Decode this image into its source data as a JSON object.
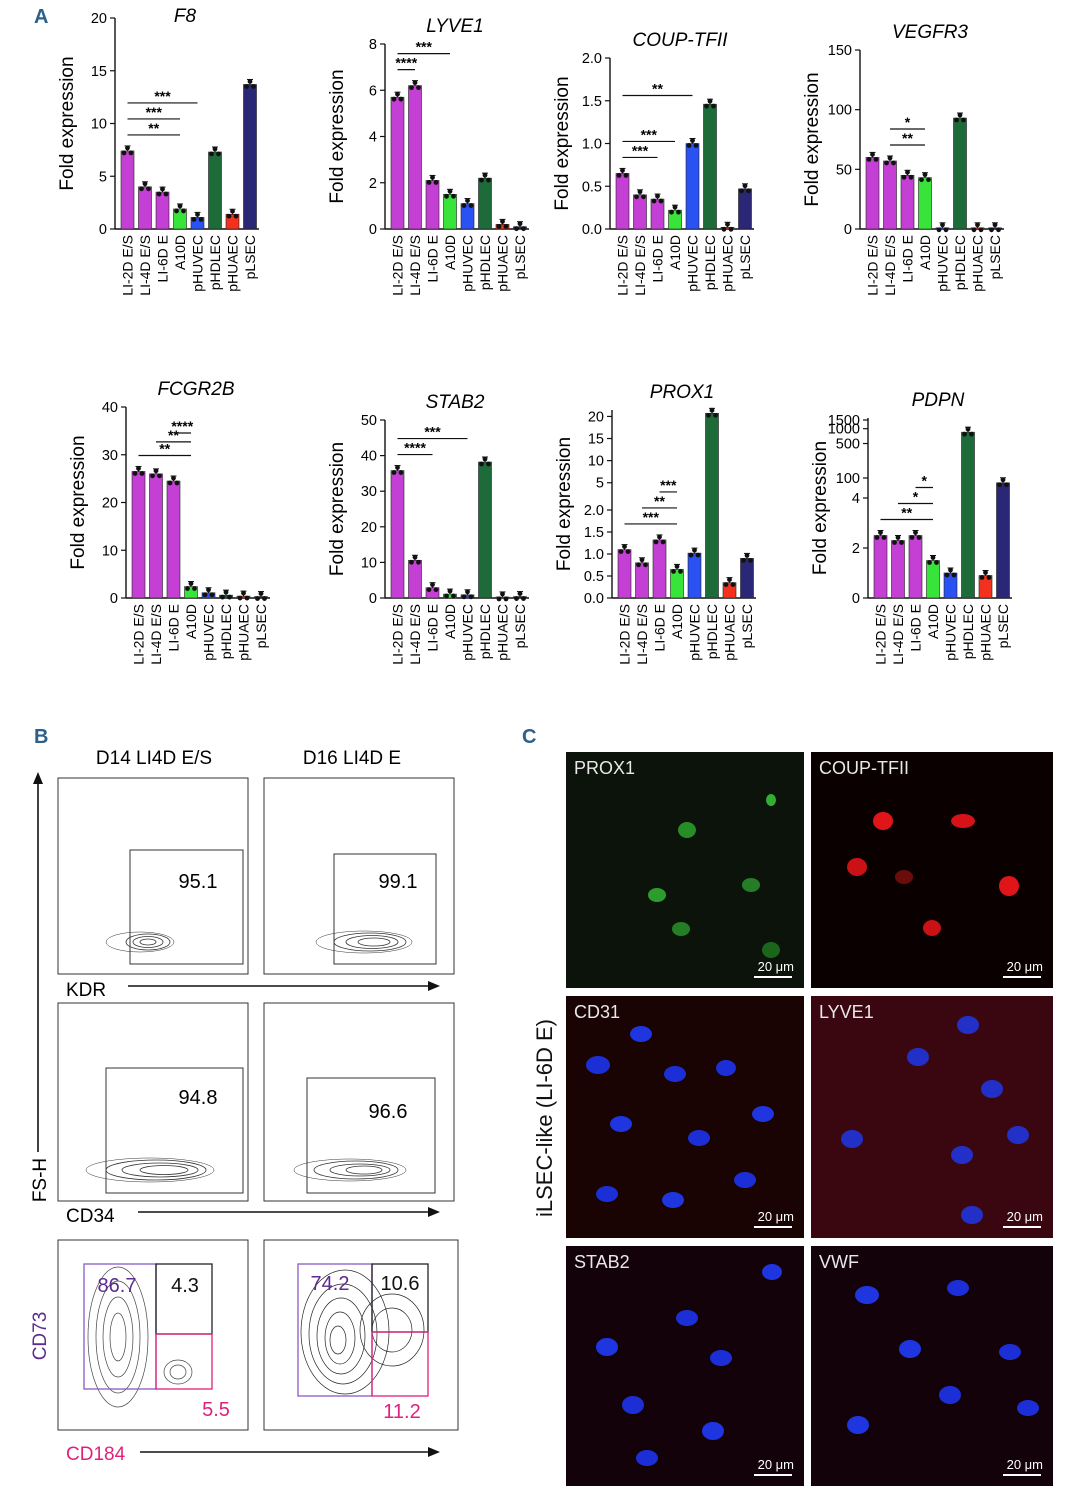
{
  "panel_labels": {
    "a": "A",
    "b": "B",
    "c": "C"
  },
  "colors": {
    "lsec_like": "#c43fd3",
    "a10d": "#39e43a",
    "phuvec": "#2a52f2",
    "phdlec": "#1e6b3a",
    "phuaec": "#f2321e",
    "plsec": "#2b2777",
    "cd73_gate": "#5b2b8f",
    "cd184_gate": "#e0217d"
  },
  "chart_data": [
    {
      "type": "bar",
      "title": "F8",
      "ylabel": "Fold expression",
      "ylim": [
        0,
        20
      ],
      "yticks": [
        "0",
        "5",
        "10",
        "15",
        "20"
      ],
      "categories": [
        "LI-2D E/S",
        "LI-4D E/S",
        "LI-6D E",
        "A10D",
        "pHUVEC",
        "pHDLEC",
        "pHUAEC",
        "pLSEC"
      ],
      "values": [
        7.4,
        4.0,
        3.5,
        1.9,
        1.1,
        7.3,
        1.4,
        13.7
      ],
      "significance": [
        {
          "label": "**",
          "from": 0,
          "to": 3
        },
        {
          "label": "***",
          "from": 0,
          "to": 3
        },
        {
          "label": "***",
          "from": 0,
          "to": 4
        }
      ]
    },
    {
      "type": "bar",
      "title": "LYVE1",
      "ylabel": "Fold expression",
      "ylim": [
        0,
        8
      ],
      "yticks": [
        "0",
        "2",
        "4",
        "6",
        "8"
      ],
      "categories": [
        "LI-2D E/S",
        "LI-4D E/S",
        "LI-6D E",
        "A10D",
        "pHUVEC",
        "pHDLEC",
        "pHUAEC",
        "pLSEC"
      ],
      "values": [
        5.7,
        6.2,
        2.1,
        1.5,
        1.1,
        2.2,
        0.2,
        0.1
      ],
      "significance": [
        {
          "label": "****",
          "from": 0,
          "to": 1
        },
        {
          "label": "***",
          "from": 0,
          "to": 3
        }
      ]
    },
    {
      "type": "bar",
      "title": "COUP-TFII",
      "ylabel": "Fold expression",
      "ylim": [
        0,
        2.0
      ],
      "yticks": [
        "0.0",
        "0.5",
        "1.0",
        "1.5",
        "2.0"
      ],
      "categories": [
        "LI-2D E/S",
        "LI-4D E/S",
        "LI-6D E",
        "A10D",
        "pHUVEC",
        "pHDLEC",
        "pHUAEC",
        "pLSEC"
      ],
      "values": [
        0.65,
        0.4,
        0.35,
        0.22,
        1.0,
        1.46,
        0.02,
        0.47
      ],
      "significance": [
        {
          "label": "***",
          "from": 0,
          "to": 2
        },
        {
          "label": "***",
          "from": 0,
          "to": 3
        },
        {
          "label": "**",
          "from": 0,
          "to": 4
        }
      ]
    },
    {
      "type": "bar",
      "title": "VEGFR3",
      "ylabel": "Fold expression",
      "ylim": [
        0,
        150
      ],
      "yticks": [
        "0",
        "50",
        "100",
        "150"
      ],
      "categories": [
        "LI-2D E/S",
        "LI-4D E/S",
        "LI-6D E",
        "A10D",
        "pHUVEC",
        "pHDLEC",
        "pHUAEC",
        "pLSEC"
      ],
      "values": [
        60,
        57,
        45,
        43,
        1,
        93,
        1,
        1
      ],
      "significance": [
        {
          "label": "**",
          "from": 1,
          "to": 3
        },
        {
          "label": "*",
          "from": 1,
          "to": 3
        }
      ]
    },
    {
      "type": "bar",
      "title": "FCGR2B",
      "ylabel": "Fold expression",
      "ylim": [
        0,
        40
      ],
      "yticks": [
        "0",
        "10",
        "20",
        "30",
        "40"
      ],
      "categories": [
        "LI-2D E/S",
        "LI-4D E/S",
        "LI-6D E",
        "A10D",
        "pHUVEC",
        "pHDLEC",
        "pHUAEC",
        "pLSEC"
      ],
      "values": [
        26.5,
        26,
        24.5,
        2.4,
        1.1,
        0.6,
        0.4,
        0.3
      ],
      "significance": [
        {
          "label": "**",
          "from": 0,
          "to": 3
        },
        {
          "label": "**",
          "from": 1,
          "to": 3
        },
        {
          "label": "****",
          "from": 2,
          "to": 3
        }
      ]
    },
    {
      "type": "bar",
      "title": "STAB2",
      "ylabel": "Fold expression",
      "ylim": [
        0,
        50
      ],
      "yticks": [
        "0",
        "10",
        "20",
        "30",
        "40",
        "50"
      ],
      "categories": [
        "LI-2D E/S",
        "LI-4D E/S",
        "LI-6D E",
        "A10D",
        "pHUVEC",
        "pHDLEC",
        "pHUAEC",
        "pLSEC"
      ],
      "values": [
        35.8,
        10.6,
        2.9,
        1.1,
        0.9,
        38.2,
        0.3,
        0.4
      ],
      "significance": [
        {
          "label": "****",
          "from": 0,
          "to": 2
        },
        {
          "label": "***",
          "from": 0,
          "to": 4
        }
      ]
    },
    {
      "type": "bar",
      "title": "PROX1",
      "ylabel": "Fold expression",
      "yscale": "broken",
      "ylim": [
        0,
        21
      ],
      "yticks": [
        "0.0",
        "0.5",
        "1.0",
        "1.5",
        "2.0",
        "5",
        "10",
        "15",
        "20"
      ],
      "categories": [
        "LI-2D E/S",
        "LI-4D E/S",
        "LI-6D E",
        "A10D",
        "pHUVEC",
        "pHDLEC",
        "pHUAEC",
        "pLSEC"
      ],
      "values": [
        1.1,
        0.8,
        1.32,
        0.65,
        1.02,
        20.7,
        0.35,
        0.9
      ],
      "significance": [
        {
          "label": "***",
          "from": 0,
          "to": 3
        },
        {
          "label": "**",
          "from": 1,
          "to": 3
        },
        {
          "label": "***",
          "from": 2,
          "to": 3
        }
      ]
    },
    {
      "type": "bar",
      "title": "PDPN",
      "ylabel": "Fold expression",
      "yscale": "broken",
      "ylim": [
        0,
        1500
      ],
      "yticks": [
        "0",
        "2",
        "4",
        "100",
        "500",
        "1000",
        "1500"
      ],
      "categories": [
        "LI-2D E/S",
        "LI-4D E/S",
        "LI-6D E",
        "A10D",
        "pHUVEC",
        "pHDLEC",
        "pHUAEC",
        "pLSEC"
      ],
      "values": [
        2.5,
        2.3,
        2.5,
        1.5,
        1.0,
        850,
        0.9,
        80
      ],
      "significance": [
        {
          "label": "**",
          "from": 0,
          "to": 3
        },
        {
          "label": "*",
          "from": 1,
          "to": 3
        },
        {
          "label": "*",
          "from": 2,
          "to": 3
        }
      ]
    }
  ],
  "flow": {
    "col_titles": [
      "D14 LI4D E/S",
      "D16 LI4D E"
    ],
    "y_axis_label": "FS-H",
    "rows": [
      {
        "x_label": "KDR",
        "values": [
          "95.1",
          "99.1"
        ]
      },
      {
        "x_label": "CD34",
        "values": [
          "94.8",
          "96.6"
        ]
      }
    ],
    "quad": {
      "y_label": "CD73",
      "x_label": "CD184",
      "left": {
        "top_left": "86.7",
        "top_right": "4.3",
        "bottom": "5.5"
      },
      "right": {
        "top_left": "74.2",
        "top_right": "10.6",
        "bottom": "11.2"
      }
    }
  },
  "micrographs": {
    "side_label": "iLSEC-like (LI-6D E)",
    "scale_bar": "20 μm",
    "labels": [
      "PROX1",
      "COUP-TFII",
      "CD31",
      "LYVE1",
      "STAB2",
      "VWF"
    ]
  }
}
